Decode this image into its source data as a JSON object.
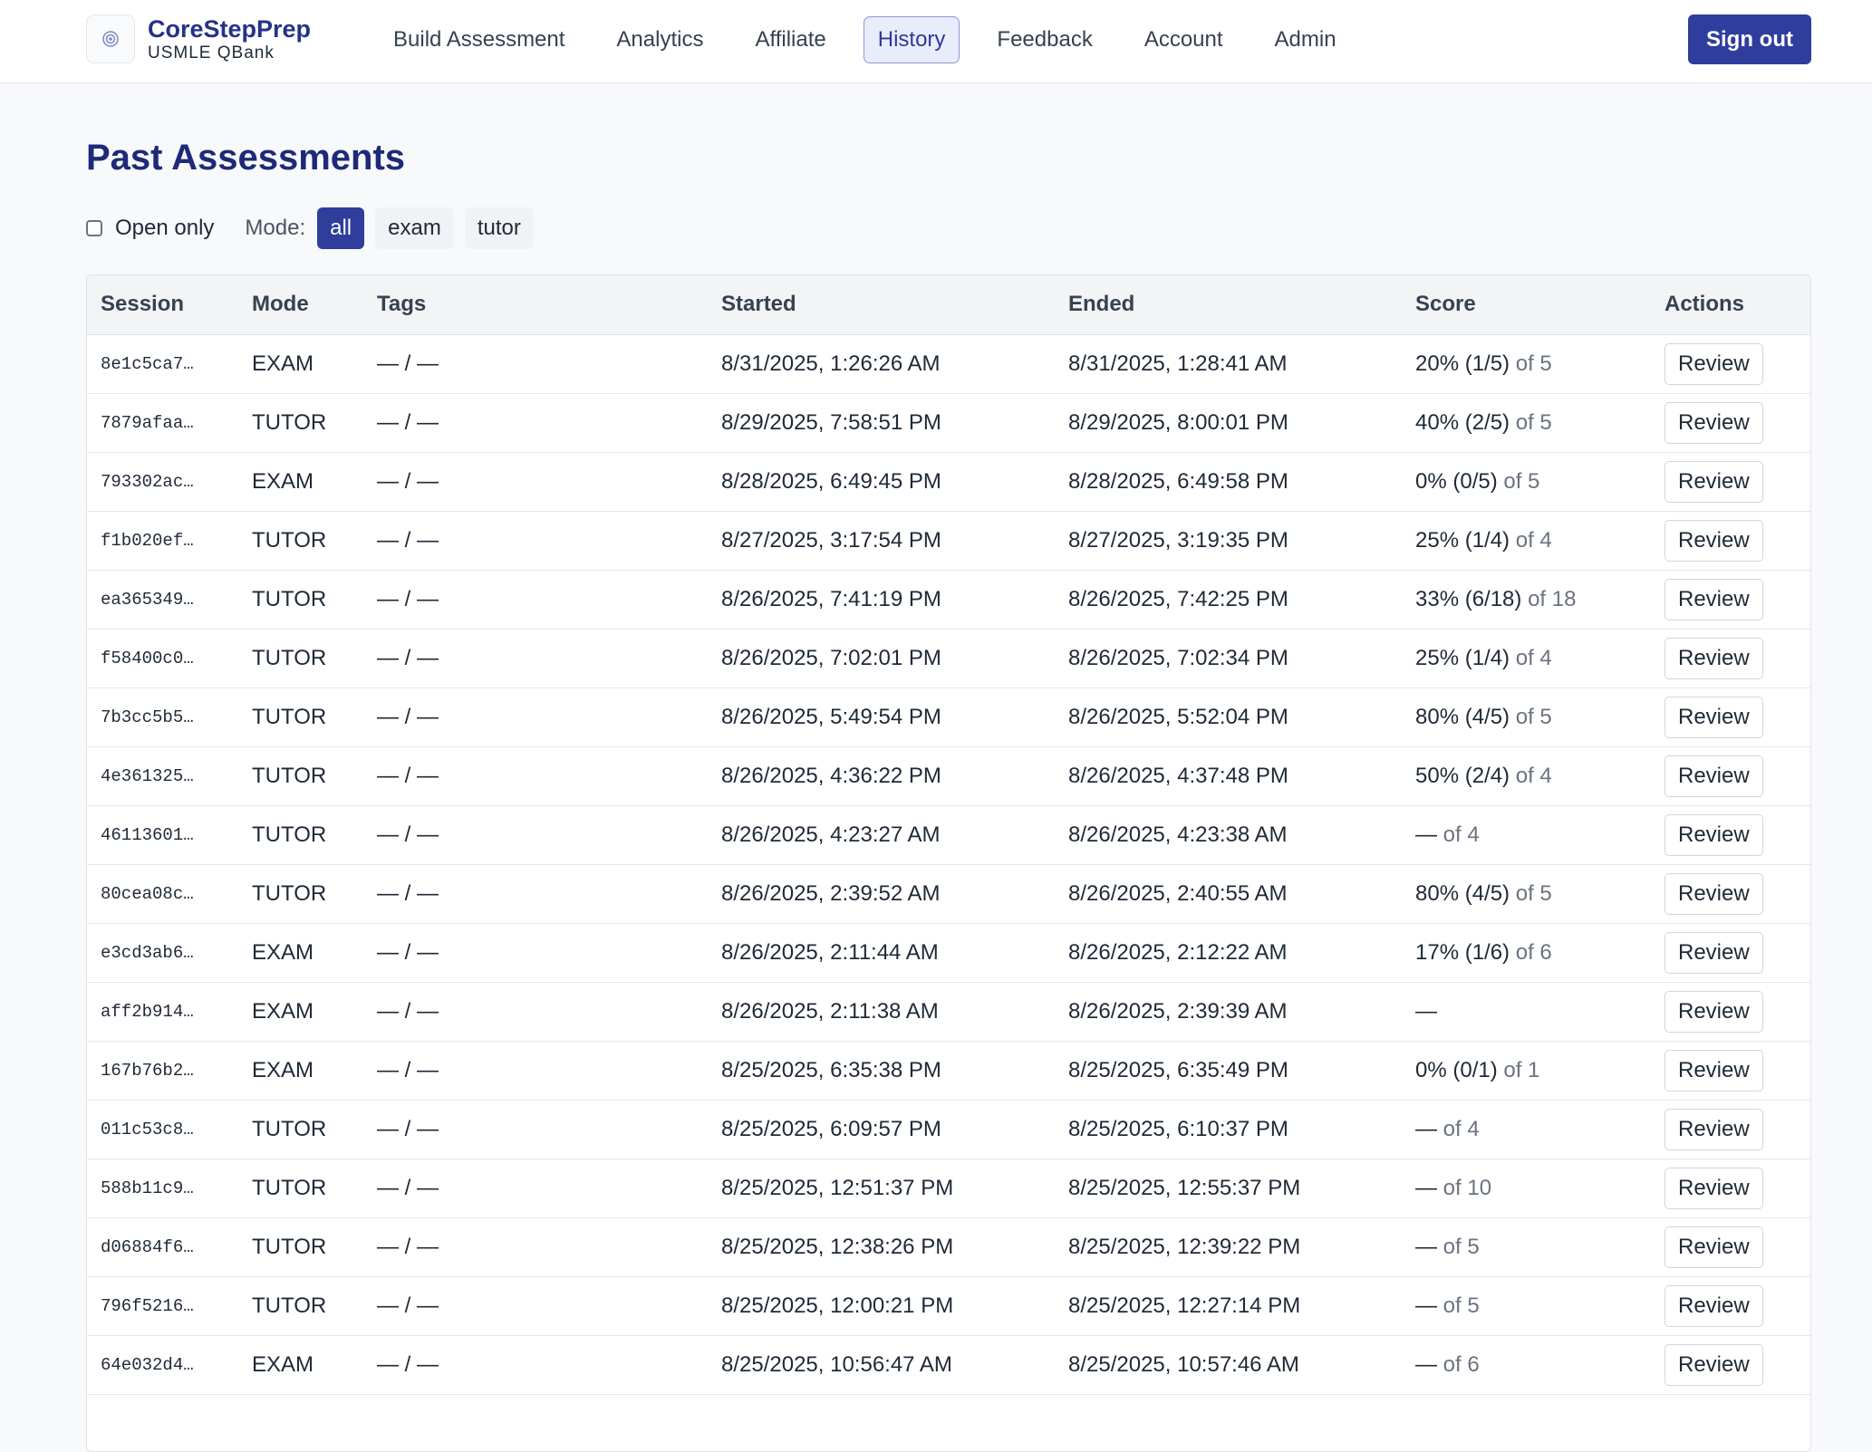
{
  "brand": {
    "title": "CoreStepPrep",
    "subtitle": "USMLE QBank",
    "logo_icon": "target-icon"
  },
  "nav": {
    "items": [
      {
        "label": "Build Assessment",
        "active": false
      },
      {
        "label": "Analytics",
        "active": false
      },
      {
        "label": "Affiliate",
        "active": false
      },
      {
        "label": "History",
        "active": true
      },
      {
        "label": "Feedback",
        "active": false
      },
      {
        "label": "Account",
        "active": false
      },
      {
        "label": "Admin",
        "active": false
      }
    ],
    "signout_label": "Sign out"
  },
  "page": {
    "title": "Past Assessments"
  },
  "filters": {
    "open_only_label": "Open only",
    "open_only_checked": false,
    "mode_label": "Mode:",
    "modes": [
      {
        "label": "all",
        "active": true
      },
      {
        "label": "exam",
        "active": false
      },
      {
        "label": "tutor",
        "active": false
      }
    ]
  },
  "table": {
    "columns": [
      "Session",
      "Mode",
      "Tags",
      "Started",
      "Ended",
      "Score",
      "Actions"
    ],
    "action_label": "Review",
    "rows": [
      {
        "session": "8e1c5ca7…",
        "mode": "EXAM",
        "tags": "— / —",
        "started": "8/31/2025, 1:26:26 AM",
        "ended": "8/31/2025, 1:28:41 AM",
        "score": "20% (1/5)",
        "of": "of 5"
      },
      {
        "session": "7879afaa…",
        "mode": "TUTOR",
        "tags": "— / —",
        "started": "8/29/2025, 7:58:51 PM",
        "ended": "8/29/2025, 8:00:01 PM",
        "score": "40% (2/5)",
        "of": "of 5"
      },
      {
        "session": "793302ac…",
        "mode": "EXAM",
        "tags": "— / —",
        "started": "8/28/2025, 6:49:45 PM",
        "ended": "8/28/2025, 6:49:58 PM",
        "score": "0% (0/5)",
        "of": "of 5"
      },
      {
        "session": "f1b020ef…",
        "mode": "TUTOR",
        "tags": "— / —",
        "started": "8/27/2025, 3:17:54 PM",
        "ended": "8/27/2025, 3:19:35 PM",
        "score": "25% (1/4)",
        "of": "of 4"
      },
      {
        "session": "ea365349…",
        "mode": "TUTOR",
        "tags": "— / —",
        "started": "8/26/2025, 7:41:19 PM",
        "ended": "8/26/2025, 7:42:25 PM",
        "score": "33% (6/18)",
        "of": "of 18"
      },
      {
        "session": "f58400c0…",
        "mode": "TUTOR",
        "tags": "— / —",
        "started": "8/26/2025, 7:02:01 PM",
        "ended": "8/26/2025, 7:02:34 PM",
        "score": "25% (1/4)",
        "of": "of 4"
      },
      {
        "session": "7b3cc5b5…",
        "mode": "TUTOR",
        "tags": "— / —",
        "started": "8/26/2025, 5:49:54 PM",
        "ended": "8/26/2025, 5:52:04 PM",
        "score": "80% (4/5)",
        "of": "of 5"
      },
      {
        "session": "4e361325…",
        "mode": "TUTOR",
        "tags": "— / —",
        "started": "8/26/2025, 4:36:22 PM",
        "ended": "8/26/2025, 4:37:48 PM",
        "score": "50% (2/4)",
        "of": "of 4"
      },
      {
        "session": "46113601…",
        "mode": "TUTOR",
        "tags": "— / —",
        "started": "8/26/2025, 4:23:27 AM",
        "ended": "8/26/2025, 4:23:38 AM",
        "score": "—",
        "of": "of 4"
      },
      {
        "session": "80cea08c…",
        "mode": "TUTOR",
        "tags": "— / —",
        "started": "8/26/2025, 2:39:52 AM",
        "ended": "8/26/2025, 2:40:55 AM",
        "score": "80% (4/5)",
        "of": "of 5"
      },
      {
        "session": "e3cd3ab6…",
        "mode": "EXAM",
        "tags": "— / —",
        "started": "8/26/2025, 2:11:44 AM",
        "ended": "8/26/2025, 2:12:22 AM",
        "score": "17% (1/6)",
        "of": "of 6"
      },
      {
        "session": "aff2b914…",
        "mode": "EXAM",
        "tags": "— / —",
        "started": "8/26/2025, 2:11:38 AM",
        "ended": "8/26/2025, 2:39:39 AM",
        "score": "—",
        "of": ""
      },
      {
        "session": "167b76b2…",
        "mode": "EXAM",
        "tags": "— / —",
        "started": "8/25/2025, 6:35:38 PM",
        "ended": "8/25/2025, 6:35:49 PM",
        "score": "0% (0/1)",
        "of": "of 1"
      },
      {
        "session": "011c53c8…",
        "mode": "TUTOR",
        "tags": "— / —",
        "started": "8/25/2025, 6:09:57 PM",
        "ended": "8/25/2025, 6:10:37 PM",
        "score": "—",
        "of": "of 4"
      },
      {
        "session": "588b11c9…",
        "mode": "TUTOR",
        "tags": "— / —",
        "started": "8/25/2025, 12:51:37 PM",
        "ended": "8/25/2025, 12:55:37 PM",
        "score": "—",
        "of": "of 10"
      },
      {
        "session": "d06884f6…",
        "mode": "TUTOR",
        "tags": "— / —",
        "started": "8/25/2025, 12:38:26 PM",
        "ended": "8/25/2025, 12:39:22 PM",
        "score": "—",
        "of": "of 5"
      },
      {
        "session": "796f5216…",
        "mode": "TUTOR",
        "tags": "— / —",
        "started": "8/25/2025, 12:00:21 PM",
        "ended": "8/25/2025, 12:27:14 PM",
        "score": "—",
        "of": "of 5"
      },
      {
        "session": "64e032d4…",
        "mode": "EXAM",
        "tags": "— / —",
        "started": "8/25/2025, 10:56:47 AM",
        "ended": "8/25/2025, 10:57:46 AM",
        "score": "—",
        "of": "of 6"
      }
    ]
  }
}
